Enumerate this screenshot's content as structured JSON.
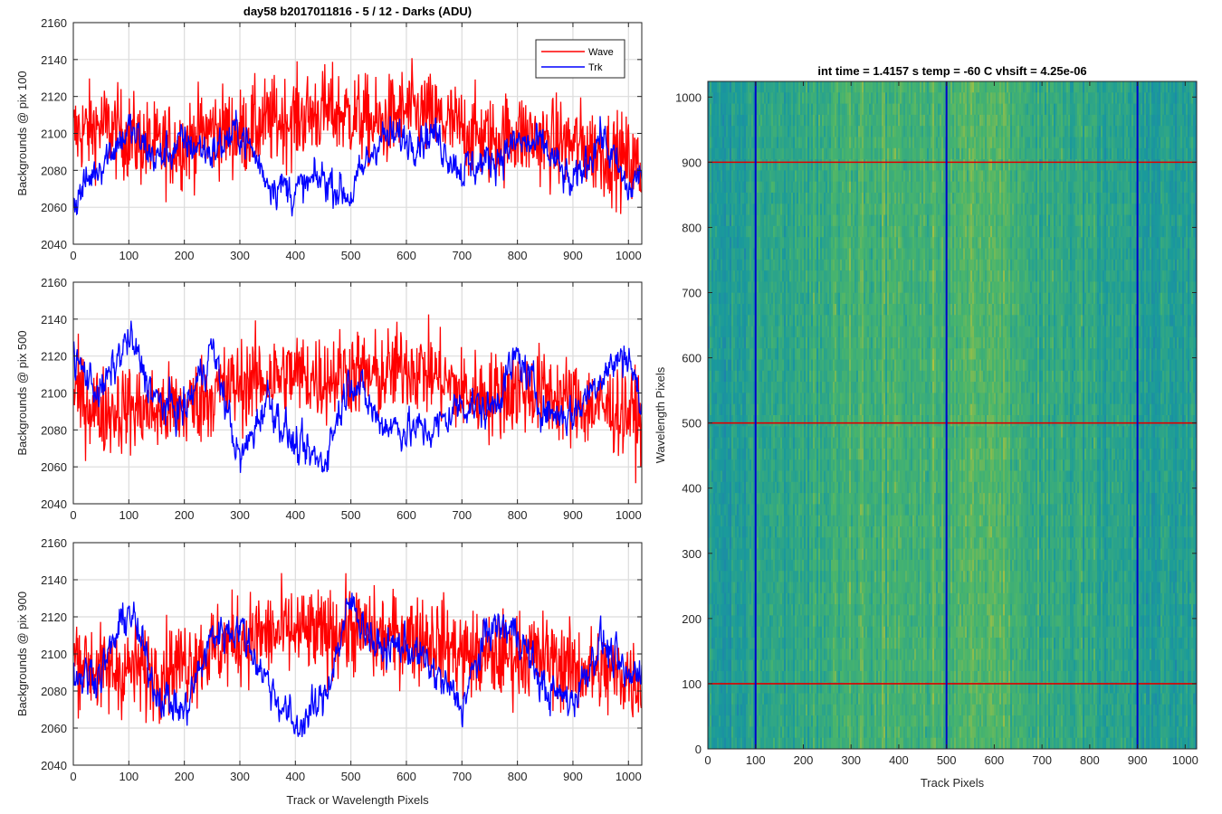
{
  "figure": {
    "title": "day58 b2017011816 - 5 / 12 - Darks (ADU)",
    "colors": {
      "wave": "#ff0000",
      "trk": "#0000ff",
      "grid": "#dcdcdc",
      "axis": "#262626"
    }
  },
  "chart_data": [
    {
      "type": "line",
      "title": "day58 b2017011816 - 5 / 12 - Darks (ADU)",
      "xlabel": "",
      "ylabel": "Backgrounds @ pix 100",
      "xlim": [
        0,
        1024
      ],
      "ylim": [
        2040,
        2160
      ],
      "xticks": [
        0,
        100,
        200,
        300,
        400,
        500,
        600,
        700,
        800,
        900,
        1000
      ],
      "yticks": [
        2040,
        2060,
        2080,
        2100,
        2120,
        2140,
        2160
      ],
      "grid": true,
      "legend": {
        "placement": "top-right",
        "entries": [
          "Wave",
          "Trk"
        ]
      },
      "series": [
        {
          "name": "Wave",
          "color": "#ff0000",
          "x": [
            0,
            50,
            100,
            150,
            200,
            250,
            300,
            350,
            400,
            450,
            500,
            550,
            600,
            650,
            700,
            750,
            800,
            850,
            900,
            950,
            1000,
            1024
          ],
          "values": [
            2100,
            2104,
            2098,
            2092,
            2095,
            2102,
            2100,
            2106,
            2108,
            2112,
            2110,
            2104,
            2112,
            2108,
            2102,
            2096,
            2100,
            2095,
            2094,
            2090,
            2085,
            2080
          ]
        },
        {
          "name": "Trk",
          "color": "#0000ff",
          "x": [
            0,
            50,
            100,
            150,
            200,
            250,
            300,
            350,
            400,
            450,
            500,
            550,
            600,
            650,
            700,
            750,
            800,
            850,
            900,
            950,
            1000,
            1024
          ],
          "values": [
            2062,
            2085,
            2102,
            2086,
            2095,
            2090,
            2102,
            2075,
            2068,
            2076,
            2066,
            2098,
            2097,
            2100,
            2080,
            2085,
            2095,
            2092,
            2070,
            2100,
            2068,
            2080
          ]
        }
      ]
    },
    {
      "type": "line",
      "title": "",
      "xlabel": "",
      "ylabel": "Backgrounds @ pix 500",
      "xlim": [
        0,
        1024
      ],
      "ylim": [
        2040,
        2160
      ],
      "xticks": [
        0,
        100,
        200,
        300,
        400,
        500,
        600,
        700,
        800,
        900,
        1000
      ],
      "yticks": [
        2040,
        2060,
        2080,
        2100,
        2120,
        2140,
        2160
      ],
      "grid": true,
      "series": [
        {
          "name": "Wave",
          "color": "#ff0000",
          "x": [
            0,
            50,
            100,
            150,
            200,
            250,
            300,
            350,
            400,
            450,
            500,
            550,
            600,
            650,
            700,
            750,
            800,
            850,
            900,
            950,
            1000,
            1024
          ],
          "values": [
            2100,
            2090,
            2092,
            2090,
            2092,
            2100,
            2105,
            2108,
            2110,
            2108,
            2112,
            2108,
            2115,
            2110,
            2100,
            2098,
            2102,
            2100,
            2095,
            2092,
            2090,
            2085
          ]
        },
        {
          "name": "Trk",
          "color": "#0000ff",
          "x": [
            0,
            50,
            100,
            150,
            200,
            250,
            300,
            350,
            400,
            450,
            500,
            550,
            600,
            650,
            700,
            750,
            800,
            850,
            900,
            950,
            1000,
            1024
          ],
          "values": [
            2118,
            2100,
            2130,
            2095,
            2090,
            2125,
            2062,
            2098,
            2070,
            2062,
            2110,
            2085,
            2080,
            2080,
            2095,
            2090,
            2120,
            2090,
            2088,
            2110,
            2122,
            2090
          ]
        }
      ]
    },
    {
      "type": "line",
      "title": "",
      "xlabel": "Track or Wavelength Pixels",
      "ylabel": "Backgrounds @ pix 900",
      "xlim": [
        0,
        1024
      ],
      "ylim": [
        2040,
        2160
      ],
      "xticks": [
        0,
        100,
        200,
        300,
        400,
        500,
        600,
        700,
        800,
        900,
        1000
      ],
      "yticks": [
        2040,
        2060,
        2080,
        2100,
        2120,
        2140,
        2160
      ],
      "grid": true,
      "series": [
        {
          "name": "Wave",
          "color": "#ff0000",
          "x": [
            0,
            50,
            100,
            150,
            200,
            250,
            300,
            350,
            400,
            450,
            500,
            550,
            600,
            650,
            700,
            750,
            800,
            850,
            900,
            950,
            1000,
            1024
          ],
          "values": [
            2100,
            2090,
            2092,
            2090,
            2096,
            2102,
            2108,
            2110,
            2112,
            2110,
            2114,
            2108,
            2110,
            2108,
            2100,
            2098,
            2100,
            2098,
            2092,
            2090,
            2088,
            2085
          ]
        },
        {
          "name": "Trk",
          "color": "#0000ff",
          "x": [
            0,
            50,
            100,
            150,
            200,
            250,
            300,
            350,
            400,
            450,
            500,
            550,
            600,
            650,
            700,
            750,
            800,
            850,
            900,
            950,
            1000,
            1024
          ],
          "values": [
            2088,
            2090,
            2125,
            2080,
            2068,
            2110,
            2115,
            2085,
            2060,
            2075,
            2128,
            2102,
            2105,
            2090,
            2072,
            2115,
            2112,
            2080,
            2075,
            2108,
            2085,
            2095
          ]
        }
      ]
    },
    {
      "type": "heatmap",
      "title": "int time = 1.4157 s    temp = -60 C    vhsift = 4.25e-06",
      "xlabel": "Track Pixels",
      "ylabel": "Wavelength Pixels",
      "xlim": [
        0,
        1024
      ],
      "ylim": [
        0,
        1024
      ],
      "xticks": [
        0,
        100,
        200,
        300,
        400,
        500,
        600,
        700,
        800,
        900,
        1000
      ],
      "yticks": [
        0,
        100,
        200,
        300,
        400,
        500,
        600,
        700,
        800,
        900,
        1000
      ],
      "colormap_colors": [
        "#1f78b4",
        "#1a9a9b",
        "#4ab56b",
        "#b7c23a"
      ],
      "column_intensity": {
        "x": [
          0,
          50,
          100,
          150,
          200,
          250,
          300,
          350,
          400,
          450,
          500,
          550,
          600,
          650,
          700,
          750,
          800,
          850,
          900,
          950,
          1000,
          1024
        ],
        "values": [
          0.35,
          0.38,
          0.45,
          0.5,
          0.52,
          0.55,
          0.6,
          0.62,
          0.62,
          0.58,
          0.6,
          0.65,
          0.68,
          0.62,
          0.55,
          0.5,
          0.48,
          0.45,
          0.42,
          0.4,
          0.38,
          0.36
        ]
      },
      "markers": {
        "vertical_lines_x": [
          100,
          500,
          900
        ],
        "vertical_color": "#0000cc",
        "horizontal_lines_y": [
          100,
          500,
          900
        ],
        "horizontal_color": "#dd0000"
      }
    }
  ]
}
